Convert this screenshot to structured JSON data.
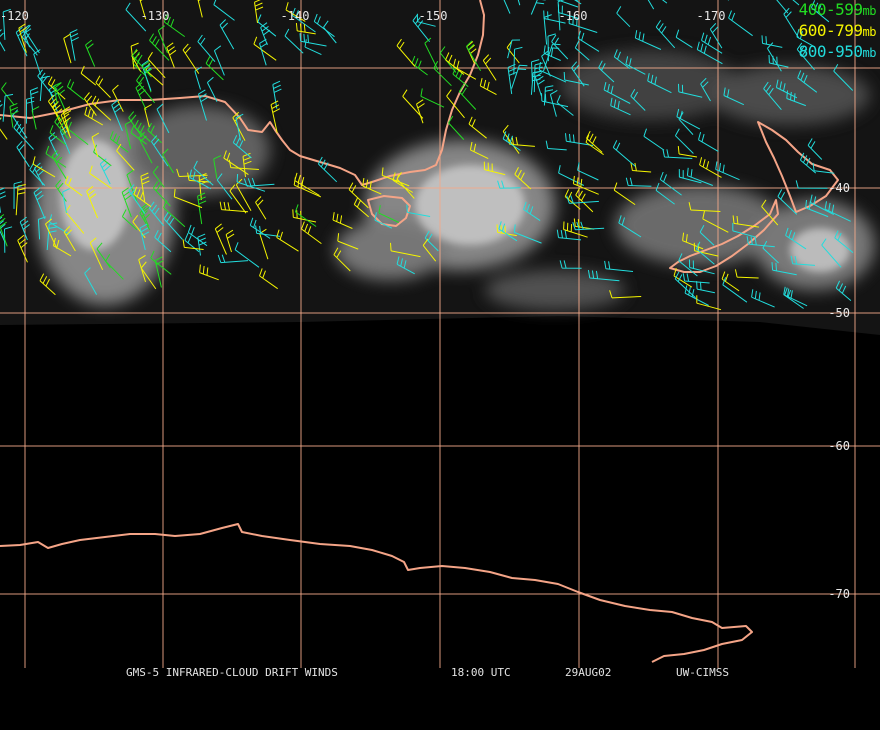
{
  "legend": [
    {
      "range": "400-599",
      "unit": "mb",
      "color": "#22dd22"
    },
    {
      "range": "600-799",
      "unit": "mb",
      "color": "#f5f500"
    },
    {
      "range": "800-950",
      "unit": "mb",
      "color": "#22dddd"
    }
  ],
  "longitude_labels": [
    "-120",
    "-130",
    "-140",
    "-150",
    "-160",
    "-170"
  ],
  "latitude_labels": [
    "-40",
    "-50",
    "-60",
    "-70"
  ],
  "caption": {
    "title": "GMS-5 INFRARED-CLOUD DRIFT WINDS",
    "time": "18:00 UTC",
    "date": "29AUG02",
    "source": "UW-CIMSS"
  },
  "colors": {
    "background": "#000000",
    "grid": "#f2a98a",
    "coastline": "#f4a487"
  }
}
